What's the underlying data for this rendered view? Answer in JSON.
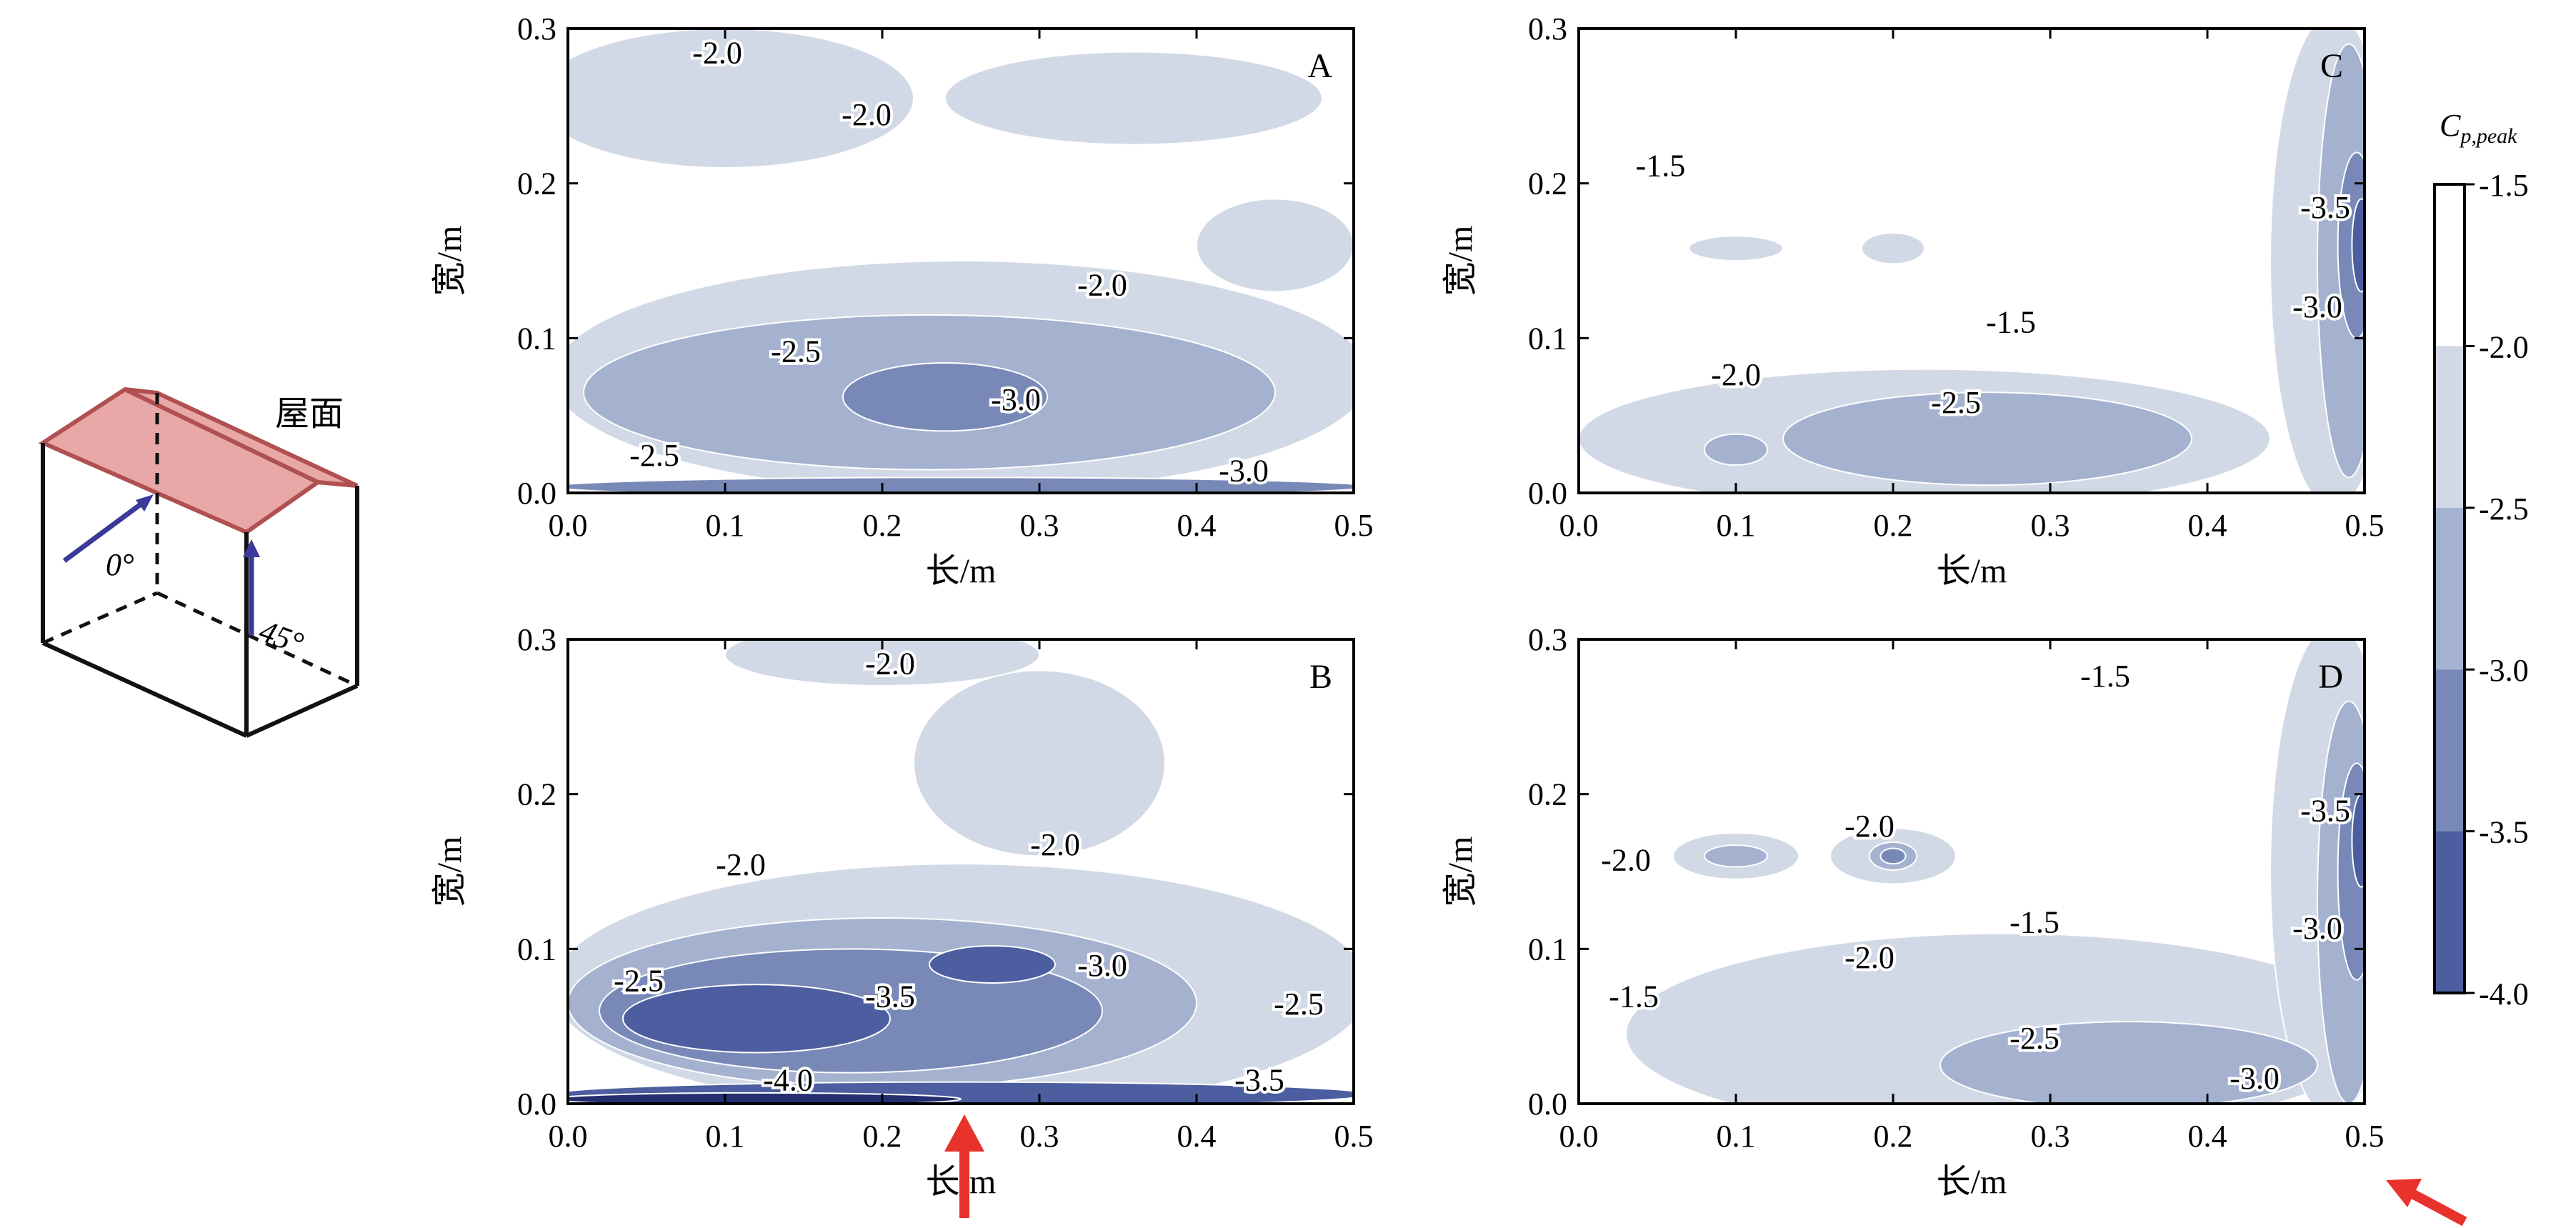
{
  "chart_data": {
    "type": "heatmap",
    "colorbar": {
      "title": "C",
      "title_sub": "p,peak",
      "ticks": [
        "-1.5",
        "-2.0",
        "-2.5",
        "-3.0",
        "-3.5",
        "-4.0"
      ],
      "levels": [
        -1.5,
        -2.0,
        -2.5,
        -3.0,
        -3.5,
        -4.0
      ],
      "colors": [
        "#ffffff",
        "#d2d9e6",
        "#a4b2cf",
        "#7889b8",
        "#4c5e9f",
        "#252f6f"
      ]
    },
    "building": {
      "roof_label": "屋面",
      "angle_0_label": "0°",
      "angle_45_label": "45°"
    },
    "panels": [
      {
        "id": "A",
        "title": "A",
        "xlabel": "长/m",
        "ylabel": "宽/m",
        "xlim": [
          0,
          0.5
        ],
        "ylim": [
          0,
          0.3
        ],
        "xticks": [
          "0.0",
          "0.1",
          "0.2",
          "0.3",
          "0.4",
          "0.5"
        ],
        "yticks": [
          "0.0",
          "0.1",
          "0.2",
          "0.3"
        ],
        "contour_labels": [
          {
            "text": "-2.0",
            "x": 0.095,
            "y": 0.285
          },
          {
            "text": "-2.0",
            "x": 0.19,
            "y": 0.245
          },
          {
            "text": "-2.0",
            "x": 0.34,
            "y": 0.135
          },
          {
            "text": "-2.5",
            "x": 0.145,
            "y": 0.092
          },
          {
            "text": "-3.0",
            "x": 0.285,
            "y": 0.061
          },
          {
            "text": "-2.5",
            "x": 0.055,
            "y": 0.025
          },
          {
            "text": "-3.0",
            "x": 0.43,
            "y": 0.015
          }
        ],
        "regions": [
          {
            "level": -2.0,
            "cx": 0.1,
            "cy": 0.255,
            "rx": 0.12,
            "ry": 0.045
          },
          {
            "level": -2.0,
            "cx": 0.36,
            "cy": 0.255,
            "rx": 0.12,
            "ry": 0.03
          },
          {
            "level": -2.0,
            "cx": 0.25,
            "cy": 0.075,
            "rx": 0.26,
            "ry": 0.075
          },
          {
            "level": -2.0,
            "cx": 0.45,
            "cy": 0.16,
            "rx": 0.05,
            "ry": 0.03
          },
          {
            "level": -2.5,
            "cx": 0.23,
            "cy": 0.065,
            "rx": 0.22,
            "ry": 0.05
          },
          {
            "level": -3.0,
            "cx": 0.24,
            "cy": 0.062,
            "rx": 0.065,
            "ry": 0.022
          },
          {
            "level": -3.0,
            "cx": 0.25,
            "cy": 0.004,
            "rx": 0.26,
            "ry": 0.006
          }
        ]
      },
      {
        "id": "B",
        "title": "B",
        "xlabel": "长/m",
        "ylabel": "宽/m",
        "xlim": [
          0,
          0.5
        ],
        "ylim": [
          0,
          0.3
        ],
        "xticks": [
          "0.0",
          "0.1",
          "0.2",
          "0.3",
          "0.4",
          "0.5"
        ],
        "yticks": [
          "0.0",
          "0.1",
          "0.2",
          "0.3"
        ],
        "contour_labels": [
          {
            "text": "-2.0",
            "x": 0.205,
            "y": 0.285
          },
          {
            "text": "-2.0",
            "x": 0.11,
            "y": 0.155
          },
          {
            "text": "-2.0",
            "x": 0.31,
            "y": 0.168
          },
          {
            "text": "-2.5",
            "x": 0.045,
            "y": 0.08
          },
          {
            "text": "-3.5",
            "x": 0.205,
            "y": 0.07
          },
          {
            "text": "-3.0",
            "x": 0.34,
            "y": 0.09
          },
          {
            "text": "-2.5",
            "x": 0.465,
            "y": 0.065
          },
          {
            "text": "-4.0",
            "x": 0.14,
            "y": 0.016
          },
          {
            "text": "-3.5",
            "x": 0.44,
            "y": 0.016
          }
        ],
        "regions": [
          {
            "level": -2.0,
            "cx": 0.3,
            "cy": 0.22,
            "rx": 0.08,
            "ry": 0.06
          },
          {
            "level": -2.0,
            "cx": 0.25,
            "cy": 0.075,
            "rx": 0.26,
            "ry": 0.08
          },
          {
            "level": -2.0,
            "cx": 0.2,
            "cy": 0.29,
            "rx": 0.1,
            "ry": 0.02
          },
          {
            "level": -2.5,
            "cx": 0.2,
            "cy": 0.065,
            "rx": 0.2,
            "ry": 0.055
          },
          {
            "level": -3.0,
            "cx": 0.18,
            "cy": 0.06,
            "rx": 0.16,
            "ry": 0.04
          },
          {
            "level": -3.5,
            "cx": 0.12,
            "cy": 0.055,
            "rx": 0.085,
            "ry": 0.022
          },
          {
            "level": -3.5,
            "cx": 0.27,
            "cy": 0.09,
            "rx": 0.04,
            "ry": 0.012
          },
          {
            "level": -3.5,
            "cx": 0.25,
            "cy": 0.006,
            "rx": 0.26,
            "ry": 0.008
          },
          {
            "level": -4.0,
            "cx": 0.12,
            "cy": 0.003,
            "rx": 0.13,
            "ry": 0.004
          }
        ]
      },
      {
        "id": "C",
        "title": "C",
        "xlabel": "长/m",
        "ylabel": "宽/m",
        "xlim": [
          0,
          0.5
        ],
        "ylim": [
          0,
          0.3
        ],
        "xticks": [
          "0.0",
          "0.1",
          "0.2",
          "0.3",
          "0.4",
          "0.5"
        ],
        "yticks": [
          "0.0",
          "0.1",
          "0.2",
          "0.3"
        ],
        "contour_labels": [
          {
            "text": "-1.5",
            "x": 0.052,
            "y": 0.212
          },
          {
            "text": "-1.5",
            "x": 0.275,
            "y": 0.111
          },
          {
            "text": "-2.0",
            "x": 0.1,
            "y": 0.077
          },
          {
            "text": "-2.5",
            "x": 0.24,
            "y": 0.059
          },
          {
            "text": "-3.5",
            "x": 0.475,
            "y": 0.185
          },
          {
            "text": "-3.0",
            "x": 0.47,
            "y": 0.121
          }
        ],
        "regions": [
          {
            "level": -2.0,
            "cx": 0.22,
            "cy": 0.035,
            "rx": 0.22,
            "ry": 0.045
          },
          {
            "level": -2.0,
            "cx": 0.48,
            "cy": 0.15,
            "rx": 0.04,
            "ry": 0.16
          },
          {
            "level": -2.0,
            "cx": 0.1,
            "cy": 0.158,
            "rx": 0.03,
            "ry": 0.008
          },
          {
            "level": -2.0,
            "cx": 0.2,
            "cy": 0.158,
            "rx": 0.02,
            "ry": 0.01
          },
          {
            "level": -2.5,
            "cx": 0.26,
            "cy": 0.035,
            "rx": 0.13,
            "ry": 0.03
          },
          {
            "level": -2.5,
            "cx": 0.49,
            "cy": 0.15,
            "rx": 0.02,
            "ry": 0.14
          },
          {
            "level": -2.5,
            "cx": 0.1,
            "cy": 0.028,
            "rx": 0.02,
            "ry": 0.01
          },
          {
            "level": -3.0,
            "cx": 0.495,
            "cy": 0.16,
            "rx": 0.012,
            "ry": 0.06
          },
          {
            "level": -3.5,
            "cx": 0.498,
            "cy": 0.16,
            "rx": 0.006,
            "ry": 0.03
          }
        ]
      },
      {
        "id": "D",
        "title": "D",
        "xlabel": "长/m",
        "ylabel": "宽/m",
        "xlim": [
          0,
          0.5
        ],
        "ylim": [
          0,
          0.3
        ],
        "xticks": [
          "0.0",
          "0.1",
          "0.2",
          "0.3",
          "0.4",
          "0.5"
        ],
        "yticks": [
          "0.0",
          "0.1",
          "0.2",
          "0.3"
        ],
        "contour_labels": [
          {
            "text": "-1.5",
            "x": 0.335,
            "y": 0.277
          },
          {
            "text": "-2.0",
            "x": 0.185,
            "y": 0.18
          },
          {
            "text": "-2.0",
            "x": 0.03,
            "y": 0.158
          },
          {
            "text": "-1.5",
            "x": 0.29,
            "y": 0.118
          },
          {
            "text": "-2.0",
            "x": 0.185,
            "y": 0.095
          },
          {
            "text": "-1.5",
            "x": 0.035,
            "y": 0.07
          },
          {
            "text": "-2.5",
            "x": 0.29,
            "y": 0.043
          },
          {
            "text": "-3.5",
            "x": 0.475,
            "y": 0.19
          },
          {
            "text": "-3.0",
            "x": 0.47,
            "y": 0.114
          },
          {
            "text": "-3.0",
            "x": 0.43,
            "y": 0.017
          }
        ],
        "regions": [
          {
            "level": -2.0,
            "cx": 0.27,
            "cy": 0.045,
            "rx": 0.24,
            "ry": 0.065
          },
          {
            "level": -2.0,
            "cx": 0.1,
            "cy": 0.16,
            "rx": 0.04,
            "ry": 0.015
          },
          {
            "level": -2.0,
            "cx": 0.2,
            "cy": 0.16,
            "rx": 0.04,
            "ry": 0.018
          },
          {
            "level": -2.0,
            "cx": 0.48,
            "cy": 0.15,
            "rx": 0.04,
            "ry": 0.16
          },
          {
            "level": -2.5,
            "cx": 0.35,
            "cy": 0.025,
            "rx": 0.12,
            "ry": 0.028
          },
          {
            "level": -2.5,
            "cx": 0.49,
            "cy": 0.13,
            "rx": 0.02,
            "ry": 0.13
          },
          {
            "level": -2.5,
            "cx": 0.1,
            "cy": 0.16,
            "rx": 0.02,
            "ry": 0.007
          },
          {
            "level": -2.5,
            "cx": 0.2,
            "cy": 0.16,
            "rx": 0.015,
            "ry": 0.009
          },
          {
            "level": -3.0,
            "cx": 0.495,
            "cy": 0.15,
            "rx": 0.012,
            "ry": 0.07
          },
          {
            "level": -3.0,
            "cx": 0.2,
            "cy": 0.16,
            "rx": 0.008,
            "ry": 0.005
          },
          {
            "level": -3.5,
            "cx": 0.498,
            "cy": 0.17,
            "rx": 0.006,
            "ry": 0.03
          }
        ]
      }
    ]
  }
}
